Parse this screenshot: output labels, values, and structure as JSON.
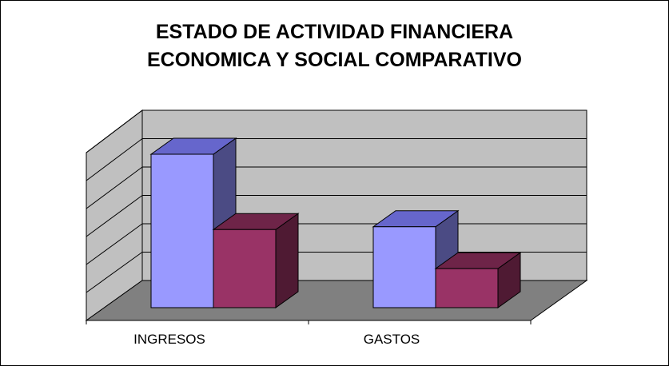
{
  "chart_data": {
    "type": "bar",
    "title_lines": [
      "ESTADO DE ACTIVIDAD FINANCIERA",
      "ECONOMICA Y SOCIAL COMPARATIVO"
    ],
    "categories": [
      "INGRESOS",
      "GASTOS"
    ],
    "series": [
      {
        "values": [
          5.5,
          2.9
        ],
        "color": "#9999ff",
        "top_color": "#6666cc",
        "side_color": "#4b4b84"
      },
      {
        "values": [
          2.8,
          1.4
        ],
        "color": "#993366",
        "top_color": "#6e2448",
        "side_color": "#4f1a33"
      }
    ],
    "ylim": [
      0,
      6
    ],
    "grid": true,
    "three_d": true,
    "legend": "none",
    "colors": {
      "wall": "#c0c0c0",
      "floor": "#808080",
      "gridline": "#000000"
    }
  }
}
